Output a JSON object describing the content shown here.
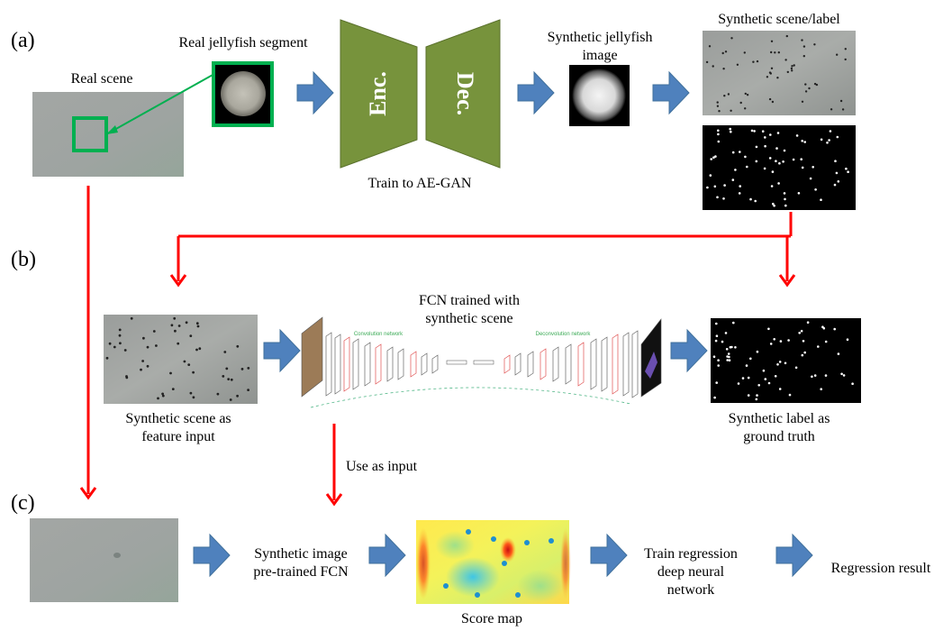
{
  "sections": {
    "a": "(a)",
    "b": "(b)",
    "c": "(c)"
  },
  "row_a": {
    "real_scene_label": "Real scene",
    "real_segment_label": "Real jellyfish  segment",
    "encoder_label": "Enc.",
    "decoder_label": "Dec.",
    "train_label": "Train to AE-GAN",
    "synthetic_image_label_line1": "Synthetic jellyfish",
    "synthetic_image_label_line2": "image",
    "scene_label_title": "Synthetic scene/label"
  },
  "row_b": {
    "input_caption_line1": "Synthetic scene as",
    "input_caption_line2": "feature input",
    "fcn_title_line1": "FCN trained with",
    "fcn_title_line2": "synthetic scene",
    "conv_net_label": "Convolution network",
    "deconv_net_label": "Deconvolution network",
    "output_caption_line1": "Synthetic label as",
    "output_caption_line2": "ground truth",
    "use_as_input": "Use as input"
  },
  "row_c": {
    "fcn_label_line1": "Synthetic image",
    "fcn_label_line2": "pre-trained FCN",
    "score_map_label": "Score map",
    "regression_line1": "Train regression",
    "regression_line2": "deep neural",
    "regression_line3": "network",
    "result_label": "Regression result"
  },
  "colors": {
    "encoder_green": "#77933c",
    "highlight_green": "#00b050",
    "flow_arrow_blue": "#4f81bd",
    "link_red": "#ff0000"
  }
}
